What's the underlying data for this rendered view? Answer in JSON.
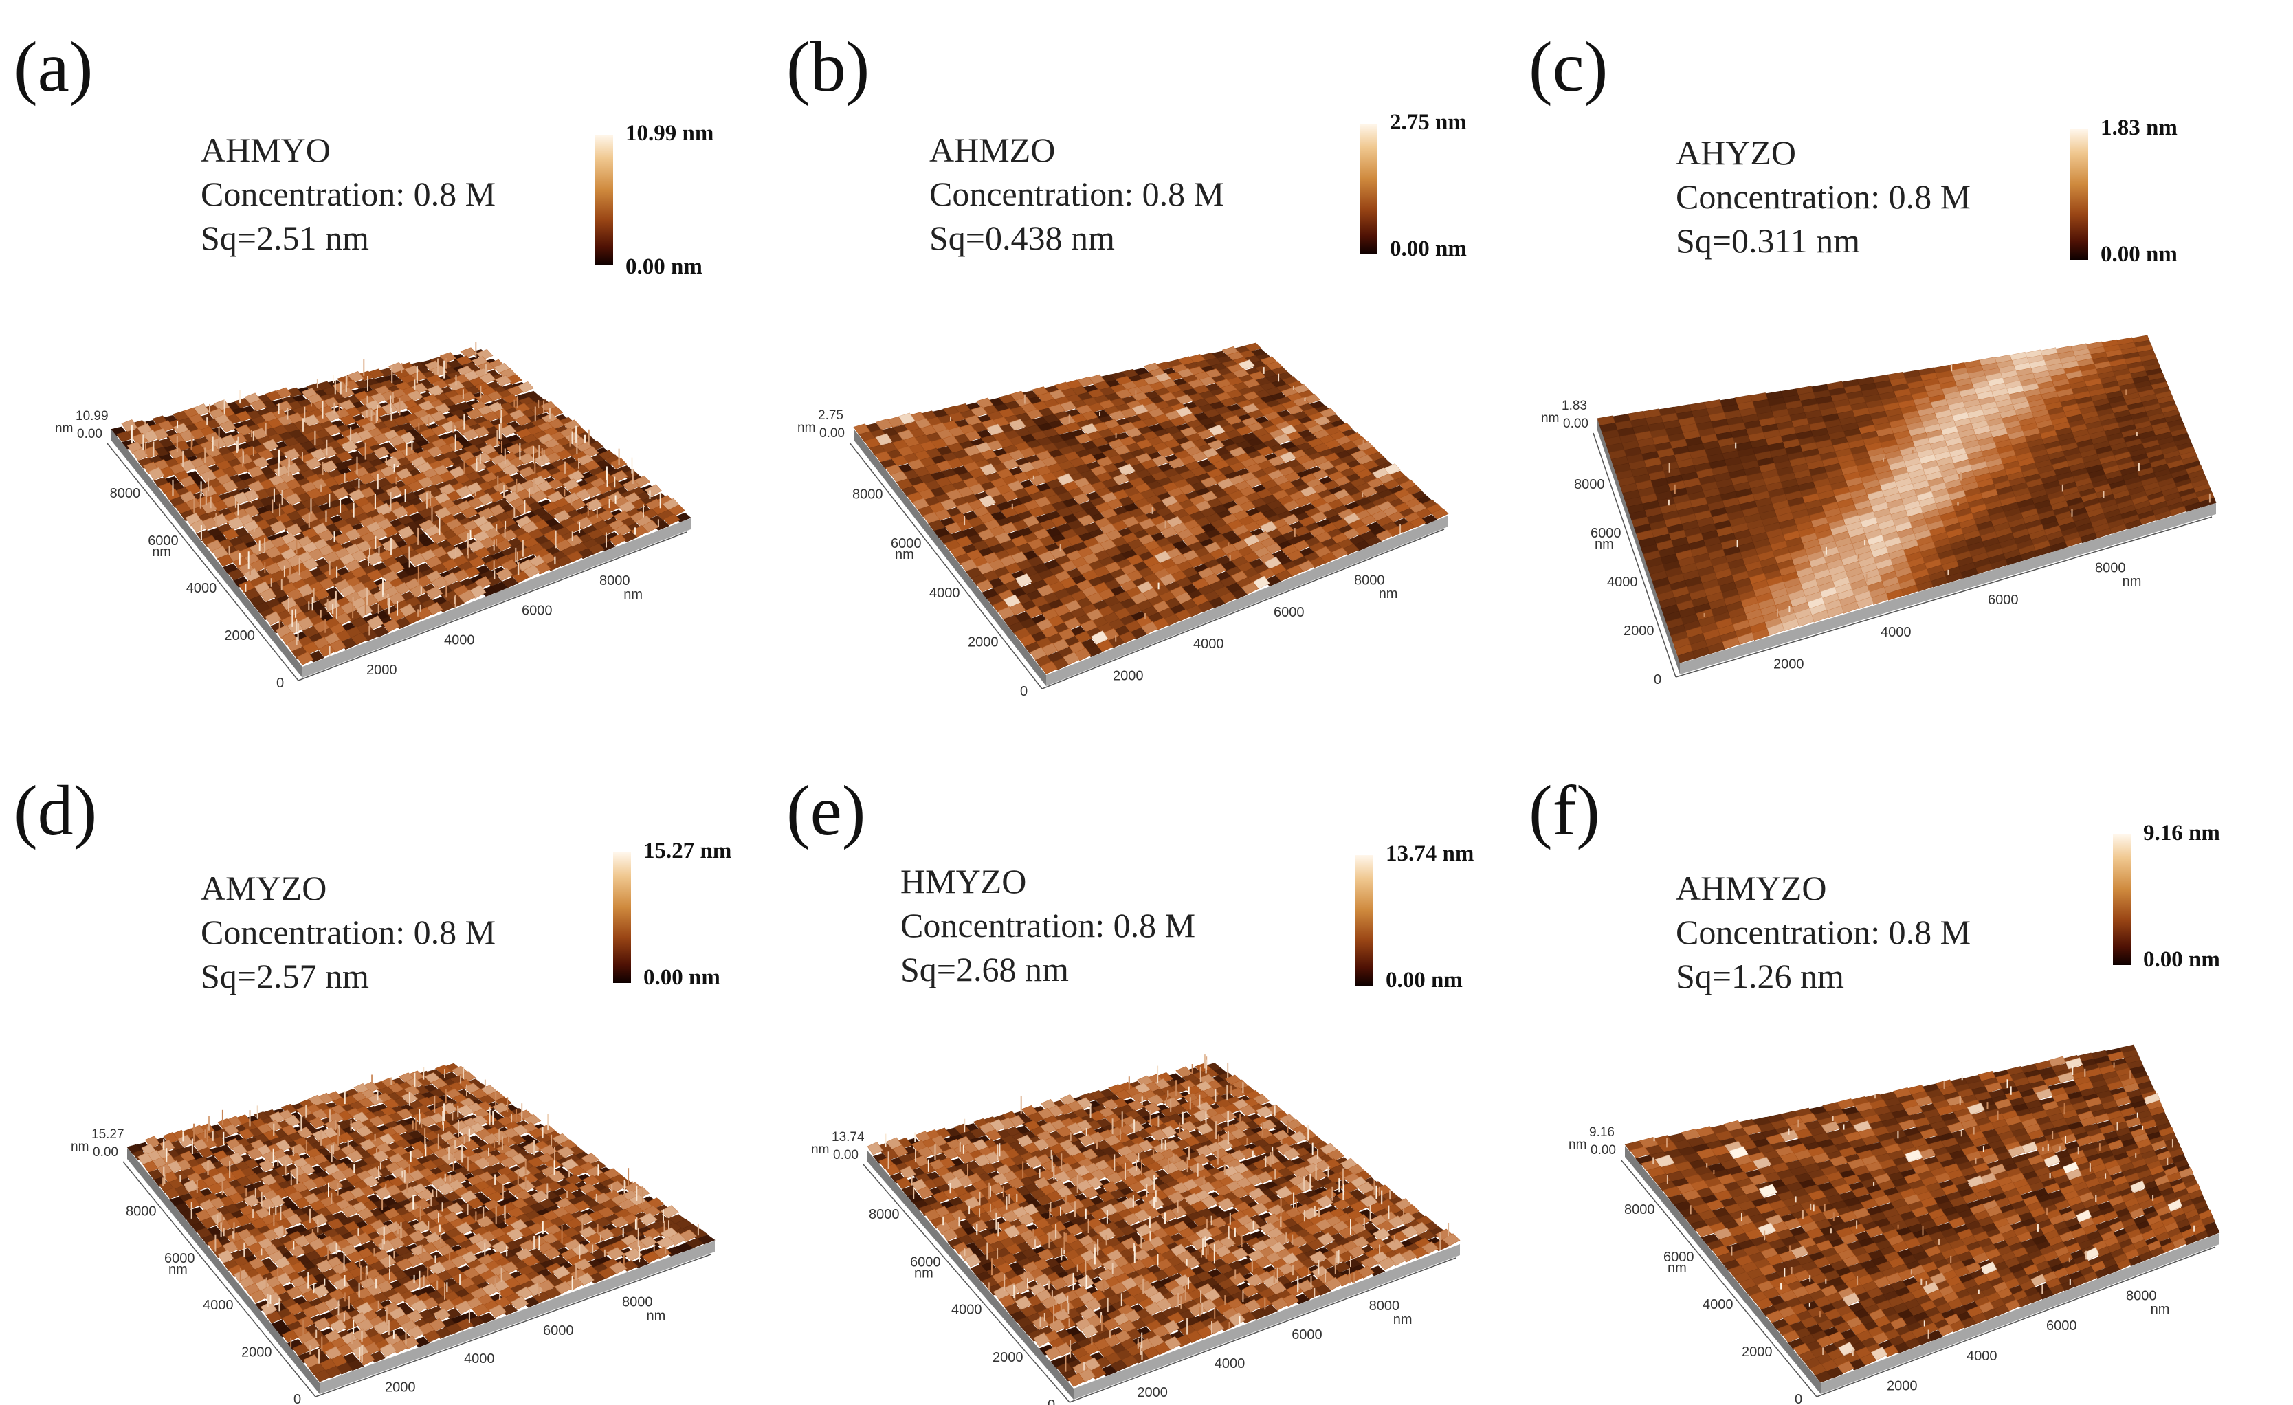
{
  "figure": {
    "axis_unit": "nm",
    "colormap": {
      "low": "#1a0400",
      "mid": "#b35a1f",
      "high": "#fff6e8"
    },
    "panels": [
      {
        "label": "(a)",
        "material": "AHMYO",
        "concentration": "Concentration: 0.8 M",
        "sq": "Sq=2.51 nm",
        "scale_max": "10.99 nm",
        "scale_min": "0.00 nm",
        "z_max": "10.99",
        "z_min": "0.00",
        "texture": "spiky",
        "roughness": 2.51,
        "x_ticks": [
          "2000",
          "4000",
          "6000",
          "8000"
        ],
        "y_ticks": [
          "0",
          "2000",
          "4000",
          "6000",
          "8000"
        ]
      },
      {
        "label": "(b)",
        "material": "AHMZO",
        "concentration": "Concentration: 0.8 M",
        "sq": "Sq=0.438 nm",
        "scale_max": "2.75 nm",
        "scale_min": "0.00 nm",
        "z_max": "2.75",
        "z_min": "0.00",
        "texture": "grainy",
        "roughness": 0.438,
        "x_ticks": [
          "2000",
          "4000",
          "6000",
          "8000"
        ],
        "y_ticks": [
          "0",
          "2000",
          "4000",
          "6000",
          "8000"
        ]
      },
      {
        "label": "(c)",
        "material": "AHYZO",
        "concentration": "Concentration: 0.8 M",
        "sq": "Sq=0.311 nm",
        "scale_max": "1.83 nm",
        "scale_min": "0.00 nm",
        "z_max": "1.83",
        "z_min": "0.00",
        "texture": "wavy",
        "roughness": 0.311,
        "x_ticks": [
          "2000",
          "4000",
          "6000",
          "8000"
        ],
        "y_ticks": [
          "0",
          "2000",
          "4000",
          "6000",
          "8000"
        ]
      },
      {
        "label": "(d)",
        "material": "AMYZO",
        "concentration": "Concentration: 0.8 M",
        "sq": "Sq=2.57 nm",
        "scale_max": "15.27 nm",
        "scale_min": "0.00 nm",
        "z_max": "15.27",
        "z_min": "0.00",
        "texture": "spiky",
        "roughness": 2.57,
        "x_ticks": [
          "2000",
          "4000",
          "6000",
          "8000"
        ],
        "y_ticks": [
          "0",
          "2000",
          "4000",
          "6000",
          "8000"
        ]
      },
      {
        "label": "(e)",
        "material": "HMYZO",
        "concentration": "Concentration: 0.8 M",
        "sq": "Sq=2.68 nm",
        "scale_max": "13.74 nm",
        "scale_min": "0.00 nm",
        "z_max": "13.74",
        "z_min": "0.00",
        "texture": "spiky",
        "roughness": 2.68,
        "x_ticks": [
          "2000",
          "4000",
          "6000",
          "8000"
        ],
        "y_ticks": [
          "0",
          "2000",
          "4000",
          "6000",
          "8000"
        ]
      },
      {
        "label": "(f)",
        "material": "AHMYZO",
        "concentration": "Concentration: 0.8 M",
        "sq": "Sq=1.26 nm",
        "scale_max": "9.16 nm",
        "scale_min": "0.00 nm",
        "z_max": "9.16",
        "z_min": "0.00",
        "texture": "fine",
        "roughness": 1.26,
        "x_ticks": [
          "2000",
          "4000",
          "6000",
          "8000"
        ],
        "y_ticks": [
          "0",
          "2000",
          "4000",
          "6000",
          "8000"
        ]
      }
    ]
  }
}
